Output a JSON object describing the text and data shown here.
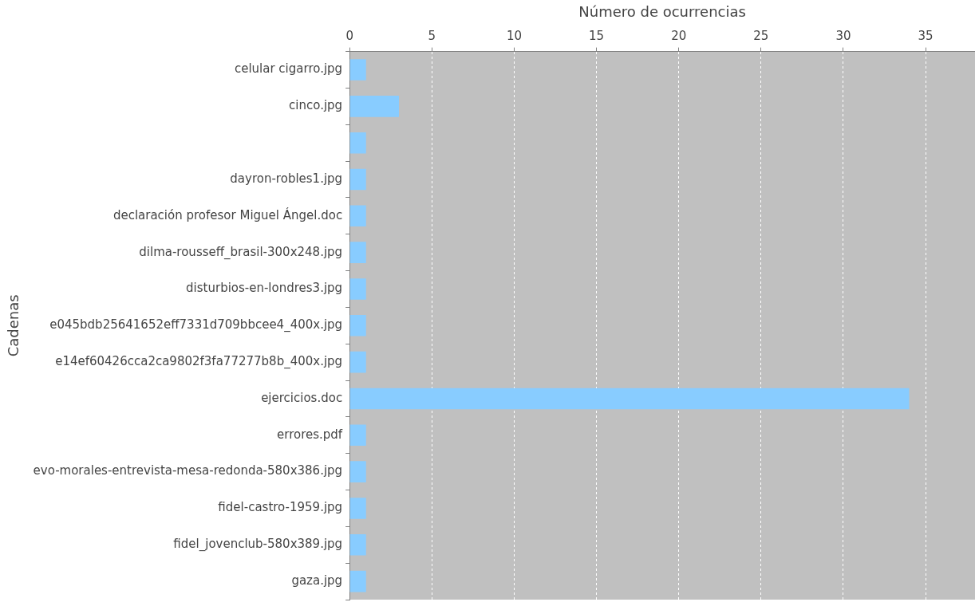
{
  "chart_data": {
    "type": "bar",
    "orientation": "horizontal",
    "xlabel": "Número de ocurrencias",
    "ylabel": "Cadenas",
    "categories": [
      "celular cigarro.jpg",
      "cinco.jpg",
      null,
      "dayron-robles1.jpg",
      "declaración profesor Miguel Ángel.doc",
      "dilma-rousseff_brasil-300x248.jpg",
      "disturbios-en-londres3.jpg",
      "e045bdb25641652eff7331d709bbcee4_400x.jpg",
      "e14ef60426cca2ca9802f3fa77277b8b_400x.jpg",
      "ejercicios.doc",
      "errores.pdf",
      "evo-morales-entrevista-mesa-redonda-580x386.jpg",
      "fidel-castro-1959.jpg",
      "fidel_jovenclub-580x389.jpg",
      "gaza.jpg"
    ],
    "values": [
      1,
      3,
      1,
      1,
      1,
      1,
      1,
      1,
      1,
      34,
      1,
      1,
      1,
      1,
      1
    ],
    "color": "#88ccff",
    "xlim": [
      0,
      38
    ],
    "xticks": [
      0,
      5,
      10,
      15,
      20,
      25,
      30,
      35
    ],
    "grid": "x"
  }
}
